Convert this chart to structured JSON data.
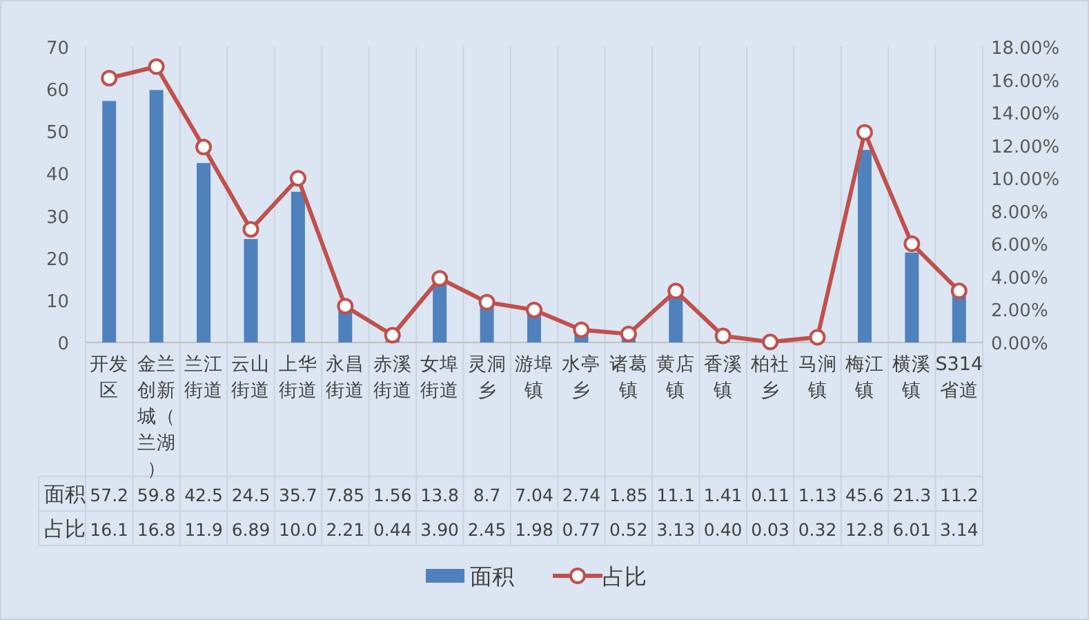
{
  "chart_data": {
    "type": "bar",
    "categories": [
      "开发区",
      "金兰创新城（兰湖）",
      "兰江街道",
      "云山街道",
      "上华街道",
      "永昌街道",
      "赤溪街道",
      "女埠街道",
      "灵洞乡",
      "游埠镇",
      "水亭乡",
      "诸葛镇",
      "黄店镇",
      "香溪镇",
      "柏社乡",
      "马涧镇",
      "梅江镇",
      "横溪镇",
      "S314省道"
    ],
    "series": [
      {
        "name": "面积",
        "color": "#4f81bd",
        "values": [
          57.2,
          59.8,
          42.5,
          24.5,
          35.7,
          7.85,
          1.56,
          13.8,
          8.7,
          7.04,
          2.74,
          1.85,
          11.1,
          1.41,
          0.11,
          1.13,
          45.6,
          21.3,
          11.2
        ],
        "value_labels": [
          "57.2",
          "59.8",
          "42.5",
          "24.5",
          "35.7",
          "7.85",
          "1.56",
          "13.8",
          "8.7",
          "7.04",
          "2.74",
          "1.85",
          "11.1",
          "1.41",
          "0.11",
          "1.13",
          "45.6",
          "21.3",
          "11.2"
        ]
      },
      {
        "name": "占比",
        "type": "line",
        "axis": "y2",
        "color": "#c0504d",
        "marker": "circle",
        "values": [
          16.1,
          16.8,
          11.9,
          6.89,
          10.0,
          2.21,
          0.44,
          3.9,
          2.45,
          1.98,
          0.77,
          0.52,
          3.13,
          0.4,
          0.03,
          0.32,
          12.8,
          6.01,
          3.14
        ],
        "value_labels": [
          "16.1",
          "16.8",
          "11.9",
          "6.89",
          "10.0",
          "2.21",
          "0.44",
          "3.90",
          "2.45",
          "1.98",
          "0.77",
          "0.52",
          "3.13",
          "0.40",
          "0.03",
          "0.32",
          "12.8",
          "6.01",
          "3.14"
        ]
      }
    ],
    "ylim": [
      0,
      70
    ],
    "yticks": [
      0,
      10,
      20,
      30,
      40,
      50,
      60,
      70
    ],
    "y2lim": [
      0,
      18
    ],
    "y2ticks": [
      {
        "value": 0,
        "label": "0.00%"
      },
      {
        "value": 2,
        "label": "2.00%"
      },
      {
        "value": 4,
        "label": "4.00%"
      },
      {
        "value": 6,
        "label": "6.00%"
      },
      {
        "value": 8,
        "label": "8.00%"
      },
      {
        "value": 10,
        "label": "10.00%"
      },
      {
        "value": 12,
        "label": "12.00%"
      },
      {
        "value": 14,
        "label": "14.00%"
      },
      {
        "value": 16,
        "label": "16.00%"
      },
      {
        "value": 18,
        "label": "18.00%"
      }
    ],
    "legend": "bottom"
  }
}
